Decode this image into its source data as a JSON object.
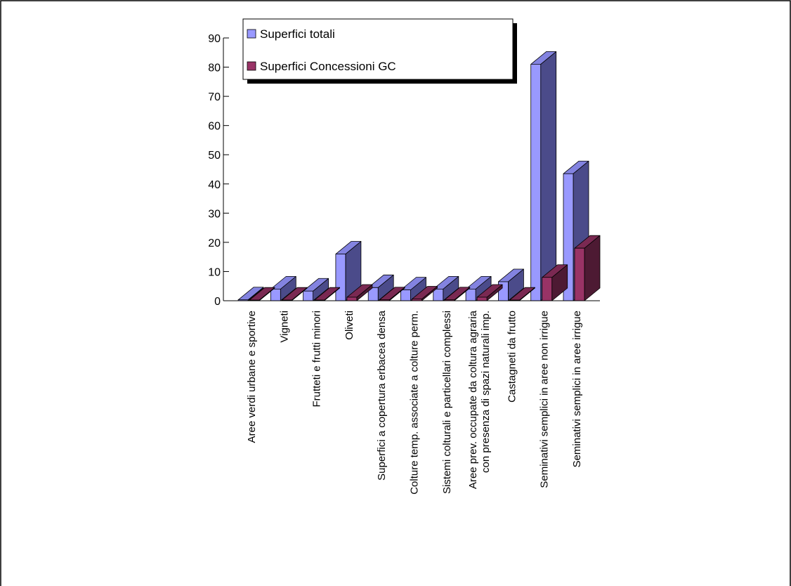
{
  "chart_data": {
    "type": "bar",
    "style": "3d-clustered",
    "categories": [
      "Aree verdi urbane e sportive",
      "Vigneti",
      "Frutteti e frutti minori",
      "Oliveti",
      "Superfici a copertura erbacea densa",
      "Colture temp. associate a colture perm.",
      "Sistemi colturali e particellari complessi",
      "Aree prev. occupate da coltura agraria\ncon presenza di spazi naturali imp.",
      "Castagneti da frutto",
      "Seminativi semplici in aree non irrigue",
      "Seminativi semplici in aree irrigue"
    ],
    "series": [
      {
        "name": "Superfici totali",
        "values": [
          0.3,
          4,
          3.3,
          16,
          4.5,
          3.7,
          4,
          4,
          6.5,
          81,
          43.5
        ],
        "color_front": "#9999ff",
        "color_side": "#4b4b8a",
        "color_top": "#8383e0"
      },
      {
        "name": "Superfici Concessioni GC",
        "values": [
          0.2,
          0.2,
          0.2,
          1.2,
          0.3,
          0.6,
          0.3,
          1.2,
          0.2,
          8,
          18
        ],
        "color_front": "#993366",
        "color_side": "#4d1a33",
        "color_top": "#7a2952"
      }
    ],
    "y_ticks": [
      0,
      10,
      20,
      30,
      40,
      50,
      60,
      70,
      80,
      90
    ],
    "ylim": [
      0,
      90
    ],
    "grid": false,
    "legend_position": "top-left",
    "title": "",
    "xlabel": "",
    "ylabel": ""
  }
}
